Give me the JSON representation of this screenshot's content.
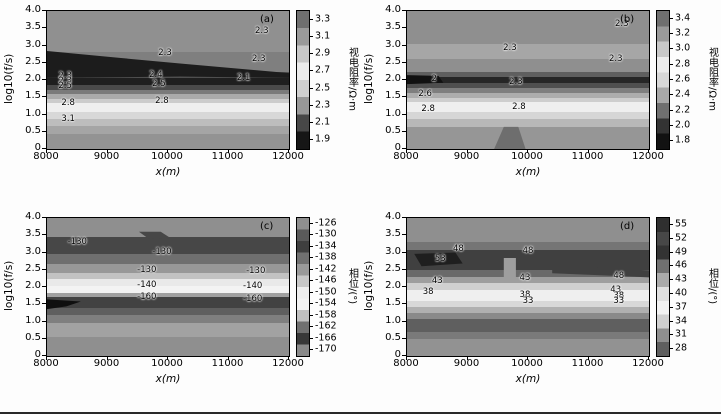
{
  "figure": {
    "background": "#fdfdfd",
    "bottom_rule_color": "#2a2a2a"
  },
  "chart_data": [
    {
      "type": "heatmap",
      "panel": "(a)",
      "xlabel": "x(m)",
      "ylabel": "log10(f/s)",
      "xlim": [
        8000,
        12000
      ],
      "ylim": [
        0,
        4.0
      ],
      "xticks": [
        "8000",
        "9000",
        "10000",
        "11000",
        "12000"
      ],
      "yticks": [
        "0",
        "0.5",
        "1.0",
        "1.5",
        "2.0",
        "2.5",
        "3.0",
        "3.5",
        "4.0"
      ],
      "colorbar": {
        "label": "视电阻率/Ω·m",
        "ticks": [
          "3.3",
          "3.1",
          "2.9",
          "2.7",
          "2.5",
          "2.3",
          "2.1",
          "1.9"
        ],
        "range": [
          1.9,
          3.3
        ],
        "colors": [
          "#6f6f6f",
          "#9a9a9a",
          "#c8c8c8",
          "#ececec",
          "#d0d0d0",
          "#989898",
          "#474747",
          "#161616"
        ]
      },
      "contour_labels": [
        {
          "value": "2.3",
          "x": 11550,
          "y": 3.42
        },
        {
          "value": "2.3",
          "x": 9950,
          "y": 2.78
        },
        {
          "value": "2.3",
          "x": 11500,
          "y": 2.6
        },
        {
          "value": "2.3",
          "x": 8300,
          "y": 2.12
        },
        {
          "value": "2.4",
          "x": 9800,
          "y": 2.14
        },
        {
          "value": "2.1",
          "x": 11250,
          "y": 2.05
        },
        {
          "value": "2.3",
          "x": 8300,
          "y": 1.97
        },
        {
          "value": "2.5",
          "x": 8300,
          "y": 1.83
        },
        {
          "value": "2.5",
          "x": 9850,
          "y": 1.88
        },
        {
          "value": "2.8",
          "x": 8350,
          "y": 1.33
        },
        {
          "value": "2.8",
          "x": 9900,
          "y": 1.38
        },
        {
          "value": "3.1",
          "x": 8350,
          "y": 0.86
        }
      ],
      "bands": [
        {
          "from": 0,
          "to": 0.3,
          "color": "#909090"
        },
        {
          "from": 0.3,
          "to": 0.44,
          "color": "#7f7f7f"
        },
        {
          "from": 0.44,
          "to": 0.485,
          "color": "#4f4f4f"
        },
        {
          "from": 0.485,
          "to": 0.535,
          "color": "#1f1f1f"
        },
        {
          "from": 0.535,
          "to": 0.57,
          "color": "#4a4a4a"
        },
        {
          "from": 0.57,
          "to": 0.6,
          "color": "#7a7a7a"
        },
        {
          "from": 0.6,
          "to": 0.635,
          "color": "#aaaaaa"
        },
        {
          "from": 0.635,
          "to": 0.665,
          "color": "#cccccc"
        },
        {
          "from": 0.665,
          "to": 0.735,
          "color": "#efefef"
        },
        {
          "from": 0.735,
          "to": 0.78,
          "color": "#d8d8d8"
        },
        {
          "from": 0.78,
          "to": 0.835,
          "color": "#bdbdbd"
        },
        {
          "from": 0.835,
          "to": 0.89,
          "color": "#a5a5a5"
        },
        {
          "from": 0.89,
          "to": 1,
          "color": "#939393"
        }
      ],
      "blobs": [
        {
          "color": "#1c1c1c",
          "points": "0% 29%, 30% 34%, 55% 38%, 100% 45%, 100% 48.5%, 55% 47.5%, 0% 48.5%"
        }
      ]
    },
    {
      "type": "heatmap",
      "panel": "(b)",
      "xlabel": "x(m)",
      "ylabel": "log10(f/s)",
      "xlim": [
        8000,
        12000
      ],
      "ylim": [
        0,
        4.0
      ],
      "xticks": [
        "8000",
        "9000",
        "10000",
        "11000",
        "12000"
      ],
      "yticks": [
        "0",
        "0.5",
        "1.0",
        "1.5",
        "2.0",
        "2.5",
        "3.0",
        "3.5",
        "4.0"
      ],
      "colorbar": {
        "label": "视电阻率/Ω·m",
        "ticks": [
          "3.4",
          "3.2",
          "3.0",
          "2.8",
          "2.6",
          "2.4",
          "2.2",
          "2.0",
          "1.8"
        ],
        "range": [
          1.8,
          3.4
        ],
        "colors": [
          "#6f6f6f",
          "#9a9a9a",
          "#c8c8c8",
          "#ececec",
          "#d8d8d8",
          "#a8a8a8",
          "#6f6f6f",
          "#333333",
          "#121212"
        ]
      },
      "contour_labels": [
        {
          "value": "2.3",
          "x": 11550,
          "y": 3.62
        },
        {
          "value": "2.3",
          "x": 9700,
          "y": 2.92
        },
        {
          "value": "2.3",
          "x": 11450,
          "y": 2.62
        },
        {
          "value": "2",
          "x": 8450,
          "y": 2.02
        },
        {
          "value": "2.3",
          "x": 9800,
          "y": 1.93
        },
        {
          "value": "2.6",
          "x": 8300,
          "y": 1.6
        },
        {
          "value": "2.8",
          "x": 8350,
          "y": 1.17
        },
        {
          "value": "2.8",
          "x": 9850,
          "y": 1.22
        }
      ],
      "bands": [
        {
          "from": 0,
          "to": 0.24,
          "color": "#8f8f8f"
        },
        {
          "from": 0.24,
          "to": 0.35,
          "color": "#a6a6a6"
        },
        {
          "from": 0.35,
          "to": 0.44,
          "color": "#8f8f8f"
        },
        {
          "from": 0.44,
          "to": 0.475,
          "color": "#5f5f5f"
        },
        {
          "from": 0.475,
          "to": 0.525,
          "color": "#262626"
        },
        {
          "from": 0.525,
          "to": 0.56,
          "color": "#4f4f4f"
        },
        {
          "from": 0.56,
          "to": 0.595,
          "color": "#7f7f7f"
        },
        {
          "from": 0.595,
          "to": 0.63,
          "color": "#adadad"
        },
        {
          "from": 0.63,
          "to": 0.66,
          "color": "#cecece"
        },
        {
          "from": 0.66,
          "to": 0.735,
          "color": "#efefef"
        },
        {
          "from": 0.735,
          "to": 0.78,
          "color": "#d6d6d6"
        },
        {
          "from": 0.78,
          "to": 0.84,
          "color": "#b8b8b8"
        },
        {
          "from": 0.84,
          "to": 1,
          "color": "#969696"
        }
      ],
      "blobs": [
        {
          "color": "#111111",
          "points": "0% 46.5%, 13% 47%, 15% 52%, 0% 53%"
        },
        {
          "color": "#6e6e6e",
          "points": "40% 84%, 46% 84%, 49% 100%, 36% 100%"
        }
      ]
    },
    {
      "type": "heatmap",
      "panel": "(c)",
      "xlabel": "x(m)",
      "ylabel": "log10(f/s)",
      "xlim": [
        8000,
        12000
      ],
      "ylim": [
        0,
        4.0
      ],
      "xticks": [
        "8000",
        "9000",
        "10000",
        "11000",
        "12000"
      ],
      "yticks": [
        "0",
        "0.5",
        "1.0",
        "1.5",
        "2.0",
        "2.5",
        "3.0",
        "3.5",
        "4.0"
      ],
      "colorbar": {
        "label": "相位/(°)",
        "ticks": [
          "-126",
          "-130",
          "-134",
          "-138",
          "-142",
          "-146",
          "-150",
          "-154",
          "-158",
          "-162",
          "-166",
          "-170"
        ],
        "range": [
          -170,
          -126
        ],
        "colors": [
          "#8f8f8f",
          "#5a5a5a",
          "#3f3f3f",
          "#707070",
          "#9a9a9a",
          "#c8c8c8",
          "#eeeeee",
          "#f3f3f3",
          "#c0c0c0",
          "#707070",
          "#383838",
          "#8a8a8a"
        ]
      },
      "contour_labels": [
        {
          "value": "-130",
          "x": 8500,
          "y": 3.3
        },
        {
          "value": "-130",
          "x": 9900,
          "y": 3.02
        },
        {
          "value": "-130",
          "x": 9650,
          "y": 2.5
        },
        {
          "value": "-130",
          "x": 11450,
          "y": 2.45
        },
        {
          "value": "-140",
          "x": 9650,
          "y": 2.07
        },
        {
          "value": "-140",
          "x": 11400,
          "y": 2.02
        },
        {
          "value": "-160",
          "x": 9650,
          "y": 1.7
        },
        {
          "value": "-160",
          "x": 11400,
          "y": 1.64
        }
      ],
      "bands": [
        {
          "from": 0,
          "to": 0.14,
          "color": "#8f8f8f"
        },
        {
          "from": 0.14,
          "to": 0.26,
          "color": "#474747"
        },
        {
          "from": 0.26,
          "to": 0.33,
          "color": "#6f6f6f"
        },
        {
          "from": 0.33,
          "to": 0.4,
          "color": "#989898"
        },
        {
          "from": 0.4,
          "to": 0.44,
          "color": "#c2c2c2"
        },
        {
          "from": 0.44,
          "to": 0.49,
          "color": "#e9e9e9"
        },
        {
          "from": 0.49,
          "to": 0.545,
          "color": "#f3f3f3"
        },
        {
          "from": 0.545,
          "to": 0.575,
          "color": "#a0a0a0"
        },
        {
          "from": 0.575,
          "to": 0.65,
          "color": "#424242"
        },
        {
          "from": 0.65,
          "to": 0.7,
          "color": "#5f5f5f"
        },
        {
          "from": 0.7,
          "to": 0.76,
          "color": "#7f7f7f"
        },
        {
          "from": 0.76,
          "to": 0.86,
          "color": "#a2a2a2"
        },
        {
          "from": 0.86,
          "to": 1,
          "color": "#8f8f8f"
        }
      ],
      "blobs": [
        {
          "color": "#0f0f0f",
          "points": "0% 59%, 14% 60.5%, 8% 64%, 0% 66%"
        },
        {
          "color": "#474747",
          "points": "38% 10%, 47% 10%, 51% 14.5%, 42% 15%"
        }
      ]
    },
    {
      "type": "heatmap",
      "panel": "(d)",
      "xlabel": "x(m)",
      "ylabel": "log10(f/s)",
      "xlim": [
        8000,
        12000
      ],
      "ylim": [
        0,
        4.0
      ],
      "xticks": [
        "8000",
        "9000",
        "10000",
        "11000",
        "12000"
      ],
      "yticks": [
        "0",
        "0.5",
        "1.0",
        "1.5",
        "2.0",
        "2.5",
        "3.0",
        "3.5",
        "4.0"
      ],
      "colorbar": {
        "label": "相位/(°)",
        "ticks": [
          "55",
          "52",
          "49",
          "46",
          "43",
          "40",
          "37",
          "34",
          "31",
          "28"
        ],
        "range": [
          28,
          55
        ],
        "colors": [
          "#2f2f2f",
          "#474747",
          "#333333",
          "#707070",
          "#aaaaaa",
          "#e0e0e0",
          "#f2f2f2",
          "#d0d0d0",
          "#8f8f8f",
          "#5f5f5f"
        ]
      },
      "contour_labels": [
        {
          "value": "48",
          "x": 8850,
          "y": 3.1
        },
        {
          "value": "48",
          "x": 10000,
          "y": 3.05
        },
        {
          "value": "53",
          "x": 8550,
          "y": 2.82
        },
        {
          "value": "43",
          "x": 8500,
          "y": 2.17
        },
        {
          "value": "43",
          "x": 9950,
          "y": 2.25
        },
        {
          "value": "48",
          "x": 11500,
          "y": 2.32
        },
        {
          "value": "38",
          "x": 8350,
          "y": 1.86
        },
        {
          "value": "38",
          "x": 9950,
          "y": 1.76
        },
        {
          "value": "33",
          "x": 10000,
          "y": 1.6
        },
        {
          "value": "43",
          "x": 11450,
          "y": 1.92
        },
        {
          "value": "38",
          "x": 11500,
          "y": 1.74
        },
        {
          "value": "33",
          "x": 11500,
          "y": 1.58
        }
      ],
      "bands": [
        {
          "from": 0,
          "to": 0.175,
          "color": "#8f8f8f"
        },
        {
          "from": 0.175,
          "to": 0.23,
          "color": "#757575"
        },
        {
          "from": 0.23,
          "to": 0.38,
          "color": "#404040"
        },
        {
          "from": 0.38,
          "to": 0.425,
          "color": "#6a6a6a"
        },
        {
          "from": 0.425,
          "to": 0.47,
          "color": "#9e9e9e"
        },
        {
          "from": 0.47,
          "to": 0.52,
          "color": "#d0d0d0"
        },
        {
          "from": 0.52,
          "to": 0.6,
          "color": "#efefef"
        },
        {
          "from": 0.6,
          "to": 0.645,
          "color": "#d8d8d8"
        },
        {
          "from": 0.645,
          "to": 0.69,
          "color": "#b0b0b0"
        },
        {
          "from": 0.69,
          "to": 0.73,
          "color": "#8a8a8a"
        },
        {
          "from": 0.73,
          "to": 0.825,
          "color": "#5f5f5f"
        },
        {
          "from": 0.825,
          "to": 0.875,
          "color": "#7a7a7a"
        },
        {
          "from": 0.875,
          "to": 1,
          "color": "#929292"
        }
      ],
      "blobs": [
        {
          "color": "#1f1f1f",
          "points": "3% 26%, 20% 25%, 23% 33%, 6% 35%"
        },
        {
          "color": "#9e9e9e",
          "points": "40% 29%, 45% 29%, 45% 46%, 40% 46%"
        },
        {
          "color": "#404040",
          "points": "60% 34%, 100% 38%, 100% 43%, 60% 40%"
        }
      ]
    }
  ]
}
